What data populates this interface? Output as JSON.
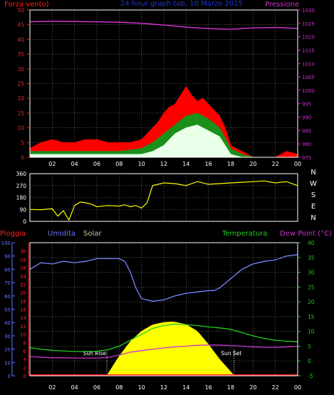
{
  "colors": {
    "background": "#000000",
    "grid": "#8a8a8a",
    "axis": "#ffffff",
    "wind_label": "#ff2020",
    "pressure": "#cc33cc",
    "title": "#2233dd",
    "gust": "#ff0000",
    "wind_avg": "#1a8f1a",
    "wind_min": "#e8ffe8",
    "direction": "#ffff00",
    "rain": "#ff2020",
    "humidity": "#7788ff",
    "solar": "#ffff00",
    "solar_label": "#c8c89a",
    "temperature": "#22cc22",
    "dewpoint": "#cc33cc",
    "temp_axis": "#22cc22",
    "rain_axis": "#ff2020",
    "hum_axis": "#6677ff"
  },
  "chart_data": [
    {
      "type": "area",
      "id": "wind",
      "title": "24 hour graph tab, 10 Marzo 2015",
      "left_label": "Forza vento)",
      "right_label": "Pressione",
      "x_ticks": [
        "02",
        "04",
        "06",
        "08",
        "10",
        "12",
        "14",
        "16",
        "18",
        "20",
        "22",
        "00"
      ],
      "y_left": {
        "ticks": [
          0,
          5,
          10,
          15,
          20,
          25,
          30,
          35,
          40,
          45,
          50
        ],
        "range": [
          0,
          50
        ]
      },
      "y_right": {
        "ticks": [
          975,
          980,
          985,
          990,
          995,
          1000,
          1005,
          1010,
          1015,
          1020,
          1025,
          1030
        ],
        "range": [
          975,
          1030
        ]
      },
      "x_range": [
        0,
        24
      ],
      "series": [
        {
          "key": "pressure",
          "axis": "right",
          "x": [
            0,
            2,
            4,
            6,
            8,
            10,
            12,
            14,
            16,
            18,
            20,
            22,
            24
          ],
          "y": [
            1025.6,
            1025.8,
            1025.7,
            1025.6,
            1025.4,
            1025.0,
            1024.4,
            1023.6,
            1023.0,
            1022.8,
            1023.3,
            1023.5,
            1023.1
          ]
        },
        {
          "key": "gust",
          "axis": "left",
          "x": [
            0,
            1,
            2,
            3,
            4,
            5,
            6,
            7,
            8,
            9,
            10,
            10.5,
            11,
            11.5,
            12,
            12.5,
            13,
            13.5,
            14,
            14.5,
            15,
            15.5,
            16,
            16.5,
            17,
            17.5,
            18,
            18.5,
            19,
            20,
            21,
            22,
            23,
            24
          ],
          "y": [
            3,
            5,
            6,
            5,
            5,
            6,
            6,
            5,
            5,
            5,
            6,
            8,
            10,
            12,
            15,
            17,
            18,
            21,
            24,
            21,
            19,
            20,
            18,
            16,
            14,
            10,
            4,
            3,
            2,
            0,
            0,
            0,
            2,
            1
          ]
        },
        {
          "key": "wind_avg",
          "axis": "left",
          "x": [
            0,
            2,
            4,
            6,
            8,
            10,
            11,
            12,
            13,
            14,
            15,
            16,
            17,
            18,
            19,
            20,
            22,
            24
          ],
          "y": [
            2,
            2,
            2,
            2,
            2,
            3,
            5,
            8,
            11,
            14,
            15,
            13,
            10,
            3,
            1,
            0,
            0,
            0
          ]
        },
        {
          "key": "wind_min",
          "axis": "left",
          "x": [
            0,
            2,
            4,
            6,
            8,
            10,
            11,
            12,
            13,
            14,
            15,
            16,
            17,
            18,
            19,
            20,
            22,
            24
          ],
          "y": [
            1,
            1,
            1,
            1,
            1,
            1,
            2,
            4,
            8,
            10,
            11,
            9,
            7,
            1,
            0,
            0,
            0,
            0
          ]
        }
      ]
    },
    {
      "type": "line",
      "id": "direction",
      "y_ticks": [
        0,
        90,
        180,
        270,
        360
      ],
      "y_range": [
        0,
        360
      ],
      "compass": [
        "N",
        "W",
        "S",
        "E",
        "N"
      ],
      "x_range": [
        0,
        24
      ],
      "series": [
        {
          "key": "direction",
          "x": [
            0,
            1,
            2,
            2.5,
            3,
            3.5,
            4,
            4.5,
            5,
            5.5,
            6,
            7,
            8,
            8.5,
            9,
            9.5,
            10,
            10.5,
            11,
            12,
            13,
            14,
            15,
            16,
            17,
            18,
            19,
            20,
            21,
            22,
            23,
            24
          ],
          "y": [
            90,
            88,
            95,
            40,
            80,
            10,
            120,
            145,
            140,
            130,
            110,
            120,
            115,
            125,
            110,
            120,
            100,
            140,
            270,
            290,
            285,
            270,
            300,
            280,
            285,
            290,
            295,
            300,
            305,
            290,
            300,
            270
          ]
        }
      ]
    },
    {
      "type": "area",
      "id": "meteo",
      "labels": {
        "rain": "Pioggia",
        "humidity": "Umidita",
        "solar": "Solar",
        "temperature": "Temperatura",
        "dewpoint": "Dew Point (°C)",
        "sunrise": "Sun Rise",
        "sunset": "Sun Set"
      },
      "x_ticks": [
        "02",
        "04",
        "06",
        "08",
        "10",
        "12",
        "14",
        "16",
        "18",
        "20",
        "22",
        "00"
      ],
      "hum_ticks": [
        0,
        10,
        20,
        30,
        40,
        50,
        60,
        70,
        80,
        90,
        100
      ],
      "rain_ticks": [
        0,
        2,
        4,
        6,
        8,
        10,
        12,
        14,
        16,
        18,
        20,
        22,
        24,
        26,
        28,
        30
      ],
      "temp_ticks": [
        -5,
        0,
        5,
        10,
        15,
        20,
        25,
        30,
        35,
        40
      ],
      "x_range": [
        0,
        24
      ],
      "temp_range": [
        -5,
        40
      ],
      "sunrise_x": 6.9,
      "sunset_x": 18.3,
      "series": [
        {
          "key": "humidity",
          "axis": "humidity",
          "x": [
            0,
            1,
            2,
            3,
            4,
            5,
            6,
            7,
            8,
            8.5,
            9,
            9.5,
            10,
            11,
            12,
            13,
            14,
            15,
            16,
            16.5,
            17,
            18,
            19,
            20,
            21,
            22,
            23,
            24
          ],
          "y": [
            80,
            85,
            84,
            86,
            85,
            86,
            88,
            88,
            88,
            86,
            78,
            66,
            58,
            56,
            57,
            60,
            62,
            63,
            64,
            64,
            66,
            73,
            80,
            84,
            86,
            87,
            90,
            91
          ]
        },
        {
          "key": "temperature",
          "axis": "temp",
          "x": [
            0,
            1,
            2,
            3,
            4,
            5,
            6,
            7,
            8,
            9,
            10,
            10.5,
            11,
            12,
            13,
            14,
            15,
            16,
            17,
            18,
            19,
            20,
            21,
            22,
            23,
            24
          ],
          "y": [
            4.5,
            4,
            3.6,
            3.4,
            3.2,
            3.2,
            3.3,
            3.8,
            5,
            7,
            9,
            10,
            11,
            12,
            12.5,
            12.3,
            12,
            11.5,
            11.2,
            10.7,
            9.6,
            8.5,
            7.6,
            7,
            6.7,
            6.5
          ]
        },
        {
          "key": "dewpoint",
          "axis": "temp",
          "x": [
            0,
            1,
            2,
            3,
            4,
            5,
            6,
            7,
            8,
            9,
            10,
            11,
            12,
            13,
            14,
            15,
            16,
            17,
            18,
            19,
            20,
            21,
            22,
            23,
            24
          ],
          "y": [
            1.5,
            1.3,
            1.1,
            1.1,
            1.0,
            1.0,
            1.0,
            1.2,
            2.0,
            3.0,
            3.5,
            4.0,
            4.4,
            4.8,
            5.0,
            5.3,
            5.4,
            5.4,
            5.2,
            5.0,
            4.8,
            4.6,
            4.6,
            4.8,
            5.0
          ]
        },
        {
          "key": "solar",
          "axis": "temp",
          "x": [
            6.9,
            8,
            9,
            10,
            11,
            12,
            12.7,
            13,
            14,
            15,
            16,
            17,
            18.3
          ],
          "y": [
            -5,
            1.5,
            6.5,
            10,
            12.2,
            13,
            13.2,
            13.1,
            12.3,
            10,
            5.5,
            0.5,
            -5
          ]
        },
        {
          "key": "rain",
          "axis": "temp",
          "x": [
            0,
            24
          ],
          "y": [
            -5,
            -5
          ]
        }
      ]
    }
  ]
}
